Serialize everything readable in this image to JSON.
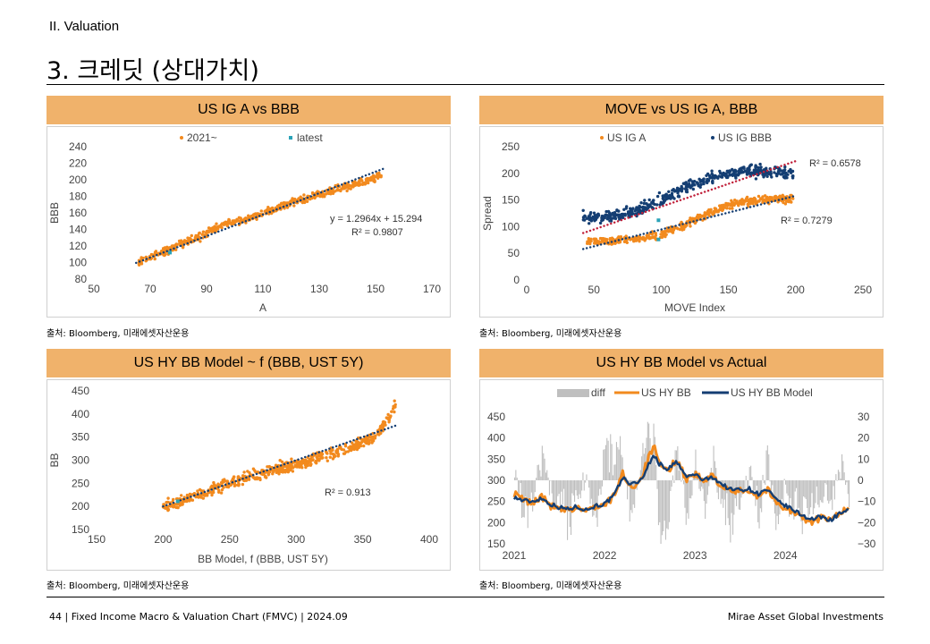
{
  "header": {
    "section": "II. Valuation",
    "title": "3. 크레딧 (상대가치)"
  },
  "footer": {
    "left": "44 | Fixed Income Macro & Valuation Chart (FMVC) | 2024.09",
    "right": "Mirae Asset Global Investments"
  },
  "panels": [
    {
      "title": "US IG A vs BBB",
      "source": "출처: Bloomberg, 미래에셋자산운용"
    },
    {
      "title": "MOVE vs US IG A, BBB",
      "source": "출처: Bloomberg, 미래에셋자산운용"
    },
    {
      "title": "US HY BB Model ~ f (BBB, UST 5Y)",
      "source": "출처: Bloomberg, 미래에셋자산운용"
    },
    {
      "title": "US HY BB Model vs Actual",
      "source": "출처: Bloomberg, 미래에셋자산운용"
    }
  ],
  "colors": {
    "orange": "#f28a1e",
    "navy": "#143e73",
    "teal": "#2aa3b8",
    "gray": "#bfbfbf",
    "panel_header": "#f0b26b",
    "red_trend": "#c0203a"
  },
  "chart_data": [
    {
      "type": "scatter",
      "title": "US IG A vs BBB",
      "xlabel": "A",
      "ylabel": "BBB",
      "xlim": [
        50,
        170
      ],
      "ylim": [
        80,
        240
      ],
      "xticks": [
        50,
        70,
        90,
        110,
        130,
        150,
        170
      ],
      "yticks": [
        80,
        100,
        120,
        140,
        160,
        180,
        200,
        220,
        240
      ],
      "legend": [
        "2021~",
        "latest"
      ],
      "series": [
        {
          "name": "2021~",
          "segments": [
            [
              66,
              101
            ],
            [
              72,
              109
            ],
            [
              80,
              121
            ],
            [
              88,
              132
            ],
            [
              96,
              146
            ],
            [
              104,
              152
            ],
            [
              112,
              162
            ],
            [
              120,
              172
            ],
            [
              128,
              181
            ],
            [
              136,
              188
            ],
            [
              144,
              196
            ],
            [
              152,
              205
            ]
          ],
          "spread": 4,
          "count": 520
        },
        {
          "name": "latest",
          "values": [
            [
              77,
              112
            ]
          ]
        }
      ],
      "trendline": {
        "x": [
          65,
          153
        ],
        "slope": 1.2964,
        "intercept": 15.294
      },
      "annotations": [
        "y = 1.2964x + 15.294",
        "R² = 0.9807"
      ],
      "grid": false
    },
    {
      "type": "scatter",
      "title": "MOVE vs US IG A, BBB",
      "xlabel": "MOVE Index",
      "ylabel": "Spread",
      "xlim": [
        0,
        250
      ],
      "ylim": [
        0,
        250
      ],
      "xticks": [
        0,
        50,
        100,
        150,
        200,
        250
      ],
      "yticks": [
        0,
        50,
        100,
        150,
        200,
        250
      ],
      "legend": [
        "US IG A",
        "US IG BBB"
      ],
      "series": [
        {
          "name": "US IG A",
          "segments": [
            [
              45,
              72
            ],
            [
              60,
              73
            ],
            [
              75,
              75
            ],
            [
              90,
              80
            ],
            [
              100,
              86
            ],
            [
              110,
              95
            ],
            [
              120,
              108
            ],
            [
              130,
              118
            ],
            [
              140,
              128
            ],
            [
              150,
              140
            ],
            [
              160,
              146
            ],
            [
              175,
              150
            ],
            [
              198,
              152
            ]
          ],
          "spread": 6,
          "count": 460
        },
        {
          "name": "US IG BBB",
          "segments": [
            [
              42,
              117
            ],
            [
              55,
              118
            ],
            [
              70,
              122
            ],
            [
              85,
              133
            ],
            [
              95,
              145
            ],
            [
              105,
              158
            ],
            [
              115,
              170
            ],
            [
              125,
              182
            ],
            [
              135,
              190
            ],
            [
              145,
              197
            ],
            [
              160,
              205
            ],
            [
              198,
              200
            ]
          ],
          "spread": 9,
          "count": 460
        },
        {
          "name": "latest",
          "values": [
            [
              98,
              76
            ],
            [
              98,
              112
            ]
          ]
        }
      ],
      "trendlines": [
        {
          "x": [
            42,
            200
          ],
          "y": [
            58,
            158
          ]
        },
        {
          "x": [
            42,
            200
          ],
          "y": [
            88,
            223
          ]
        }
      ],
      "annotations": [
        "R² = 0.6578",
        "R² = 0.7279"
      ],
      "grid": false
    },
    {
      "type": "scatter",
      "title": "US HY BB Model ~ f (BBB, UST 5Y)",
      "xlabel": "BB Model, f (BBB, UST 5Y)",
      "ylabel": "BB",
      "xlim": [
        150,
        400
      ],
      "ylim": [
        150,
        450
      ],
      "xticks": [
        150,
        200,
        250,
        300,
        350,
        400
      ],
      "yticks": [
        150,
        200,
        250,
        300,
        350,
        400,
        450
      ],
      "series": [
        {
          "name": "BB",
          "segments": [
            [
              200,
              201
            ],
            [
              215,
              214
            ],
            [
              230,
              228
            ],
            [
              245,
              245
            ],
            [
              260,
              262
            ],
            [
              275,
              272
            ],
            [
              290,
              283
            ],
            [
              305,
              295
            ],
            [
              320,
              310
            ],
            [
              335,
              322
            ],
            [
              350,
              338
            ],
            [
              362,
              360
            ],
            [
              375,
              420
            ]
          ],
          "spread": 11,
          "count": 600
        },
        {
          "name": "latest",
          "values": [
            [
              211,
              211
            ]
          ]
        }
      ],
      "trendline": {
        "x": [
          200,
          375
        ],
        "y": [
          200,
          375
        ]
      },
      "annotations": [
        "R² = 0.913"
      ],
      "grid": false
    },
    {
      "type": "line",
      "title": "US HY BB Model vs Actual",
      "legend": [
        "diff",
        "US HY BB",
        "US HY BB Model"
      ],
      "x_labels": [
        "2021",
        "2022",
        "2023",
        "2024"
      ],
      "x_range": [
        2021.0,
        2024.7
      ],
      "ylim": [
        150,
        450
      ],
      "yticks": [
        150,
        200,
        250,
        300,
        350,
        400,
        450
      ],
      "y2lim": [
        -30,
        30
      ],
      "y2ticks": [
        -30,
        -20,
        -10,
        0,
        10,
        20,
        30
      ],
      "series": [
        {
          "name": "US HY BB",
          "axis": "left",
          "x": [
            2021.0,
            2021.1,
            2021.2,
            2021.3,
            2021.4,
            2021.5,
            2021.6,
            2021.7,
            2021.8,
            2021.9,
            2022.0,
            2022.1,
            2022.2,
            2022.3,
            2022.4,
            2022.5,
            2022.55,
            2022.6,
            2022.7,
            2022.8,
            2022.9,
            2023.0,
            2023.1,
            2023.2,
            2023.3,
            2023.4,
            2023.5,
            2023.6,
            2023.7,
            2023.8,
            2023.9,
            2024.0,
            2024.1,
            2024.2,
            2024.3,
            2024.4,
            2024.5,
            2024.6,
            2024.7
          ],
          "y": [
            268,
            254,
            246,
            262,
            240,
            230,
            228,
            236,
            226,
            240,
            240,
            262,
            316,
            282,
            302,
            360,
            378,
            338,
            320,
            352,
            302,
            316,
            296,
            312,
            284,
            272,
            275,
            278,
            262,
            280,
            246,
            236,
            222,
            210,
            202,
            212,
            204,
            226,
            232
          ]
        },
        {
          "name": "US HY BB Model",
          "axis": "left",
          "x": [
            2021.0,
            2021.1,
            2021.2,
            2021.3,
            2021.4,
            2021.5,
            2021.6,
            2021.7,
            2021.8,
            2021.9,
            2022.0,
            2022.1,
            2022.2,
            2022.3,
            2022.4,
            2022.5,
            2022.55,
            2022.6,
            2022.7,
            2022.8,
            2022.9,
            2023.0,
            2023.1,
            2023.2,
            2023.3,
            2023.4,
            2023.5,
            2023.6,
            2023.7,
            2023.8,
            2023.9,
            2024.0,
            2024.1,
            2024.2,
            2024.3,
            2024.4,
            2024.5,
            2024.6,
            2024.7
          ],
          "y": [
            260,
            252,
            250,
            258,
            244,
            236,
            232,
            238,
            230,
            240,
            244,
            262,
            306,
            290,
            300,
            342,
            360,
            340,
            326,
            344,
            308,
            314,
            300,
            308,
            290,
            278,
            278,
            280,
            268,
            278,
            252,
            240,
            228,
            216,
            208,
            214,
            206,
            222,
            228
          ]
        },
        {
          "name": "diff",
          "axis": "right",
          "x": [
            2021.0,
            2021.1,
            2021.2,
            2021.3,
            2021.4,
            2021.5,
            2021.6,
            2021.7,
            2021.8,
            2021.9,
            2022.0,
            2022.1,
            2022.2,
            2022.3,
            2022.4,
            2022.5,
            2022.55,
            2022.6,
            2022.7,
            2022.8,
            2022.9,
            2023.0,
            2023.1,
            2023.2,
            2023.3,
            2023.4,
            2023.5,
            2023.6,
            2023.7,
            2023.8,
            2023.9,
            2024.0,
            2024.1,
            2024.2,
            2024.3,
            2024.4,
            2024.5,
            2024.6,
            2024.7
          ],
          "y": [
            8,
            -20,
            -10,
            12,
            -8,
            -15,
            -20,
            -6,
            4,
            -22,
            18,
            20,
            15,
            -25,
            10,
            28,
            22,
            -28,
            -26,
            24,
            -20,
            10,
            -18,
            12,
            -14,
            -22,
            -10,
            6,
            -18,
            14,
            -20,
            -8,
            -16,
            -20,
            -12,
            -6,
            -14,
            10,
            -8
          ]
        }
      ],
      "grid": false
    }
  ]
}
